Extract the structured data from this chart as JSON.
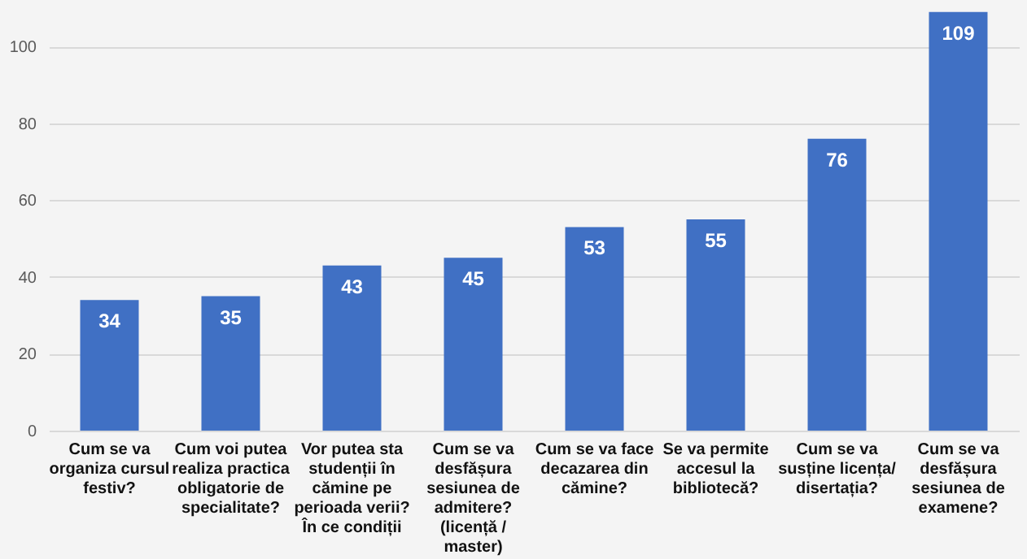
{
  "chart_data": {
    "type": "bar",
    "categories": [
      "Cum se va organiza cursul festiv?",
      "Cum voi putea realiza practica obligatorie de specialitate?",
      "Vor putea sta studenții în cămine pe perioada verii? În ce condiții",
      "Cum se va desfășura sesiunea de admitere? (licență / master)",
      "Cum se va face decazarea din cămine?",
      "Se va permite accesul la bibliotecă?",
      "Cum se va susține licența/ disertația?",
      "Cum se va desfășura sesiunea de examene?"
    ],
    "values": [
      34,
      35,
      43,
      45,
      53,
      55,
      76,
      109
    ],
    "color": "#4070c4",
    "ylim": [
      0,
      110
    ],
    "yticks": [
      0,
      20,
      40,
      60,
      80,
      100
    ],
    "grid": "y",
    "data_labels": true
  }
}
